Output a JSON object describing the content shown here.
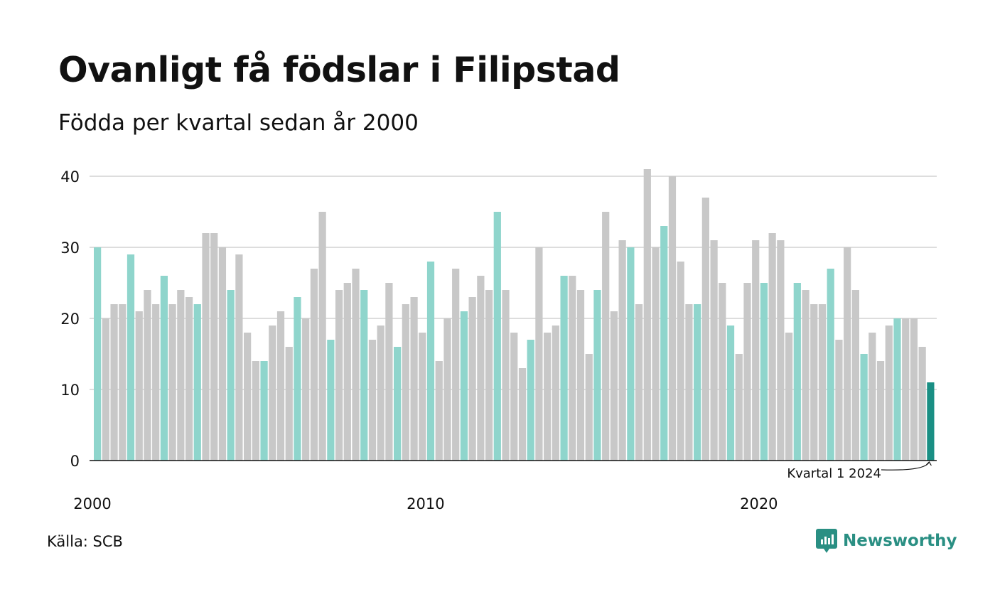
{
  "title": "Ovanligt få födslar i Filipstad",
  "subtitle": "Födda per kvartal sedan år 2000",
  "source": "Källa: SCB",
  "brand": "Newsworthy",
  "colors": {
    "first_quarter": "#8fd5cc",
    "other_quarter": "#c8c8c8",
    "latest": "#1a8f84",
    "grid": "#dddddd",
    "brand": "#2a8f83"
  },
  "chart_data": {
    "type": "bar",
    "start": {
      "year": 2000,
      "quarter": 1
    },
    "highlight": "Kvartal 1",
    "values": [
      30,
      20,
      22,
      22,
      29,
      21,
      24,
      22,
      26,
      22,
      24,
      23,
      22,
      32,
      32,
      30,
      24,
      29,
      18,
      14,
      14,
      19,
      21,
      16,
      23,
      20,
      27,
      35,
      17,
      24,
      25,
      27,
      24,
      17,
      19,
      25,
      16,
      22,
      23,
      18,
      28,
      14,
      20,
      27,
      21,
      23,
      26,
      24,
      35,
      24,
      18,
      13,
      17,
      30,
      18,
      19,
      26,
      26,
      24,
      15,
      24,
      35,
      21,
      31,
      30,
      22,
      41,
      30,
      33,
      40,
      28,
      22,
      22,
      37,
      31,
      25,
      19,
      15,
      25,
      31,
      25,
      32,
      31,
      18,
      25,
      24,
      22,
      22,
      27,
      17,
      30,
      24,
      15,
      18,
      14,
      19,
      20,
      20,
      20,
      16,
      11
    ],
    "ylim": [
      0,
      40
    ],
    "yticks": [
      0,
      10,
      20,
      30,
      40
    ],
    "xticks": [
      2000,
      2010,
      2020
    ],
    "annotation": "Kvartal 1 2024",
    "grid": true,
    "legend": "none"
  }
}
